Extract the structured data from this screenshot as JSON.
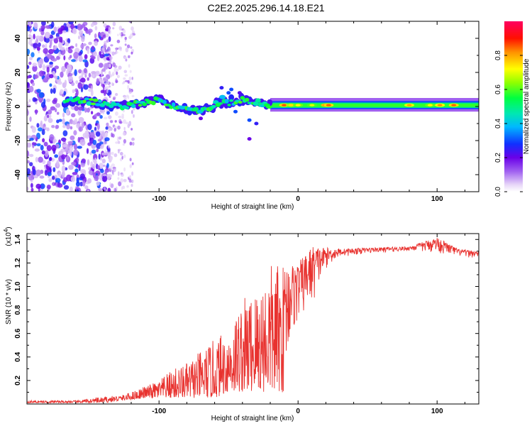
{
  "title": "C2E2.2025.296.14.18.E21",
  "chart_data": [
    {
      "type": "heatmap",
      "name": "spectrogram",
      "xlabel": "Height of straight line (km)",
      "ylabel": "Frequency (Hz)",
      "xlim": [
        -195,
        130
      ],
      "ylim": [
        -50,
        50
      ],
      "xticks": [
        -100,
        0,
        100
      ],
      "yticks": [
        -40,
        -20,
        0,
        20,
        40
      ],
      "colorbar": {
        "label": "Normalized spectral amplitude",
        "range": [
          0,
          1
        ],
        "ticks": [
          0.0,
          0.2,
          0.4,
          0.6,
          0.8
        ],
        "tick_labels": [
          "0.0",
          "0.2",
          "0.4",
          "0.6",
          "0.8"
        ]
      },
      "description_points": [
        {
          "x_range": [
            -195,
            -140
          ],
          "noise": "dense scattered low amplitude (0.1-0.3)"
        },
        {
          "x_range": [
            -140,
            -120
          ],
          "noise": "sparse scattered low amplitude"
        },
        {
          "x_range": [
            -168,
            -20
          ],
          "ridge_freq_hz": 2,
          "amplitude": "0.3-0.6"
        },
        {
          "x_range": [
            -20,
            130
          ],
          "ridge_freq_hz": 1,
          "amplitude": "0.5-0.9"
        }
      ]
    },
    {
      "type": "line",
      "name": "snr",
      "xlabel": "Height of straight line (km)",
      "ylabel": "SNR (10 * v/v)",
      "y_multiplier": "(x10",
      "y_multiplier_exp": "4",
      "y_multiplier_close": ")",
      "xlim": [
        -195,
        130
      ],
      "ylim": [
        0,
        1.45
      ],
      "xticks": [
        -100,
        0,
        100
      ],
      "yticks": [
        0.2,
        0.4,
        0.6,
        0.8,
        1.0,
        1.2,
        1.4
      ],
      "ytick_labels": [
        "0.2",
        "0.4",
        "0.6",
        "0.8",
        "1.0",
        "1.2",
        "1.4"
      ],
      "series": [
        {
          "name": "SNR",
          "color": "#e8322f",
          "envelope_x": [
            -195,
            -160,
            -140,
            -125,
            -110,
            -100,
            -90,
            -80,
            -70,
            -60,
            -50,
            -40,
            -30,
            -20,
            -10,
            -5,
            0,
            10,
            20,
            30,
            50,
            80,
            100,
            115,
            130
          ],
          "envelope_low": [
            0.01,
            0.01,
            0.01,
            0.03,
            0.05,
            0.05,
            0.05,
            0.05,
            0.05,
            0.05,
            0.1,
            0.1,
            0.1,
            0.1,
            0.1,
            0.5,
            0.65,
            0.8,
            1.15,
            1.25,
            1.28,
            1.3,
            1.28,
            1.25,
            1.24
          ],
          "envelope_high": [
            0.03,
            0.03,
            0.06,
            0.08,
            0.15,
            0.2,
            0.3,
            0.35,
            0.45,
            0.55,
            0.65,
            0.9,
            1.0,
            1.2,
            1.2,
            1.2,
            1.2,
            1.35,
            1.33,
            1.32,
            1.33,
            1.34,
            1.42,
            1.32,
            1.3
          ]
        }
      ]
    }
  ]
}
